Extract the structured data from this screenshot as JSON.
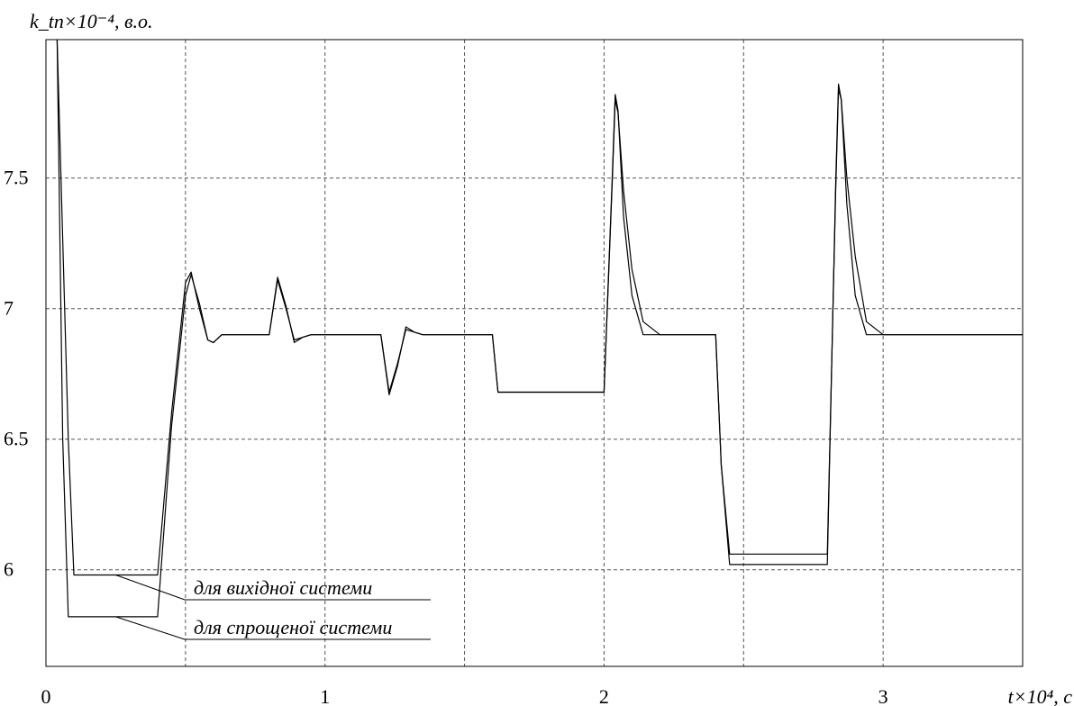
{
  "chart_data": {
    "type": "line",
    "ylabel": "k_tn×10⁻⁴, в.о.",
    "xlabel": "t×10⁴, с",
    "xlim": [
      0,
      3.5
    ],
    "ylim": [
      5.63,
      8.03
    ],
    "grid": true,
    "grid_style": "dashed",
    "x_ticks": [
      {
        "value": 0,
        "label": "0"
      },
      {
        "value": 1,
        "label": "1"
      },
      {
        "value": 2,
        "label": "2"
      },
      {
        "value": 3,
        "label": "3"
      }
    ],
    "y_ticks": [
      {
        "value": 6,
        "label": "6"
      },
      {
        "value": 6.5,
        "label": "6.5"
      },
      {
        "value": 7,
        "label": "7"
      },
      {
        "value": 7.5,
        "label": "7.5"
      }
    ],
    "series": [
      {
        "name": "для вихідної системи",
        "color": "#000000",
        "x": [
          0.04,
          0.08,
          0.1,
          0.2,
          0.3,
          0.4,
          0.45,
          0.5,
          0.52,
          0.55,
          0.58,
          0.6,
          0.63,
          0.67,
          0.7,
          0.8,
          0.83,
          0.86,
          0.89,
          0.92,
          0.95,
          1.0,
          1.2,
          1.23,
          1.26,
          1.29,
          1.32,
          1.35,
          1.4,
          1.6,
          1.62,
          1.8,
          2.0,
          2.03,
          2.04,
          2.05,
          2.07,
          2.1,
          2.14,
          2.2,
          2.4,
          2.42,
          2.45,
          2.6,
          2.8,
          2.83,
          2.84,
          2.85,
          2.87,
          2.9,
          2.94,
          3.0,
          3.5
        ],
        "y": [
          8.03,
          6.5,
          5.98,
          5.98,
          5.98,
          5.98,
          6.6,
          7.1,
          7.14,
          7.0,
          6.88,
          6.87,
          6.9,
          6.9,
          6.9,
          6.9,
          7.11,
          7.0,
          6.88,
          6.89,
          6.9,
          6.9,
          6.9,
          6.68,
          6.79,
          6.92,
          6.91,
          6.9,
          6.9,
          6.9,
          6.68,
          6.68,
          6.68,
          7.5,
          7.8,
          7.75,
          7.45,
          7.15,
          6.95,
          6.9,
          6.9,
          6.4,
          6.06,
          6.06,
          6.06,
          7.45,
          7.84,
          7.8,
          7.5,
          7.2,
          6.95,
          6.9,
          6.9
        ]
      },
      {
        "name": "для спрощеної системи",
        "color": "#000000",
        "x": [
          0.04,
          0.06,
          0.08,
          0.2,
          0.3,
          0.4,
          0.45,
          0.5,
          0.52,
          0.55,
          0.58,
          0.6,
          0.63,
          0.67,
          0.7,
          0.8,
          0.83,
          0.86,
          0.89,
          0.92,
          0.95,
          1.0,
          1.2,
          1.23,
          1.26,
          1.29,
          1.32,
          1.35,
          1.4,
          1.6,
          1.62,
          1.8,
          2.0,
          2.03,
          2.04,
          2.05,
          2.07,
          2.1,
          2.14,
          2.2,
          2.4,
          2.42,
          2.45,
          2.6,
          2.8,
          2.83,
          2.84,
          2.85,
          2.87,
          2.9,
          2.94,
          3.0,
          3.5
        ],
        "y": [
          8.03,
          6.5,
          5.82,
          5.82,
          5.82,
          5.82,
          6.55,
          7.05,
          7.13,
          7.02,
          6.88,
          6.87,
          6.9,
          6.9,
          6.9,
          6.9,
          7.12,
          7.01,
          6.87,
          6.89,
          6.9,
          6.9,
          6.9,
          6.67,
          6.78,
          6.93,
          6.91,
          6.9,
          6.9,
          6.9,
          6.68,
          6.68,
          6.68,
          7.52,
          7.82,
          7.76,
          7.35,
          7.05,
          6.9,
          6.9,
          6.9,
          6.4,
          6.02,
          6.02,
          6.02,
          7.48,
          7.86,
          7.8,
          7.4,
          7.05,
          6.9,
          6.9,
          6.9
        ]
      }
    ],
    "annotations": [
      {
        "text": "для вихідної системи",
        "series": 0,
        "point_x": 0.25,
        "point_y": 5.98
      },
      {
        "text": "для спрощеної системи",
        "series": 1,
        "point_x": 0.25,
        "point_y": 5.82
      }
    ]
  }
}
